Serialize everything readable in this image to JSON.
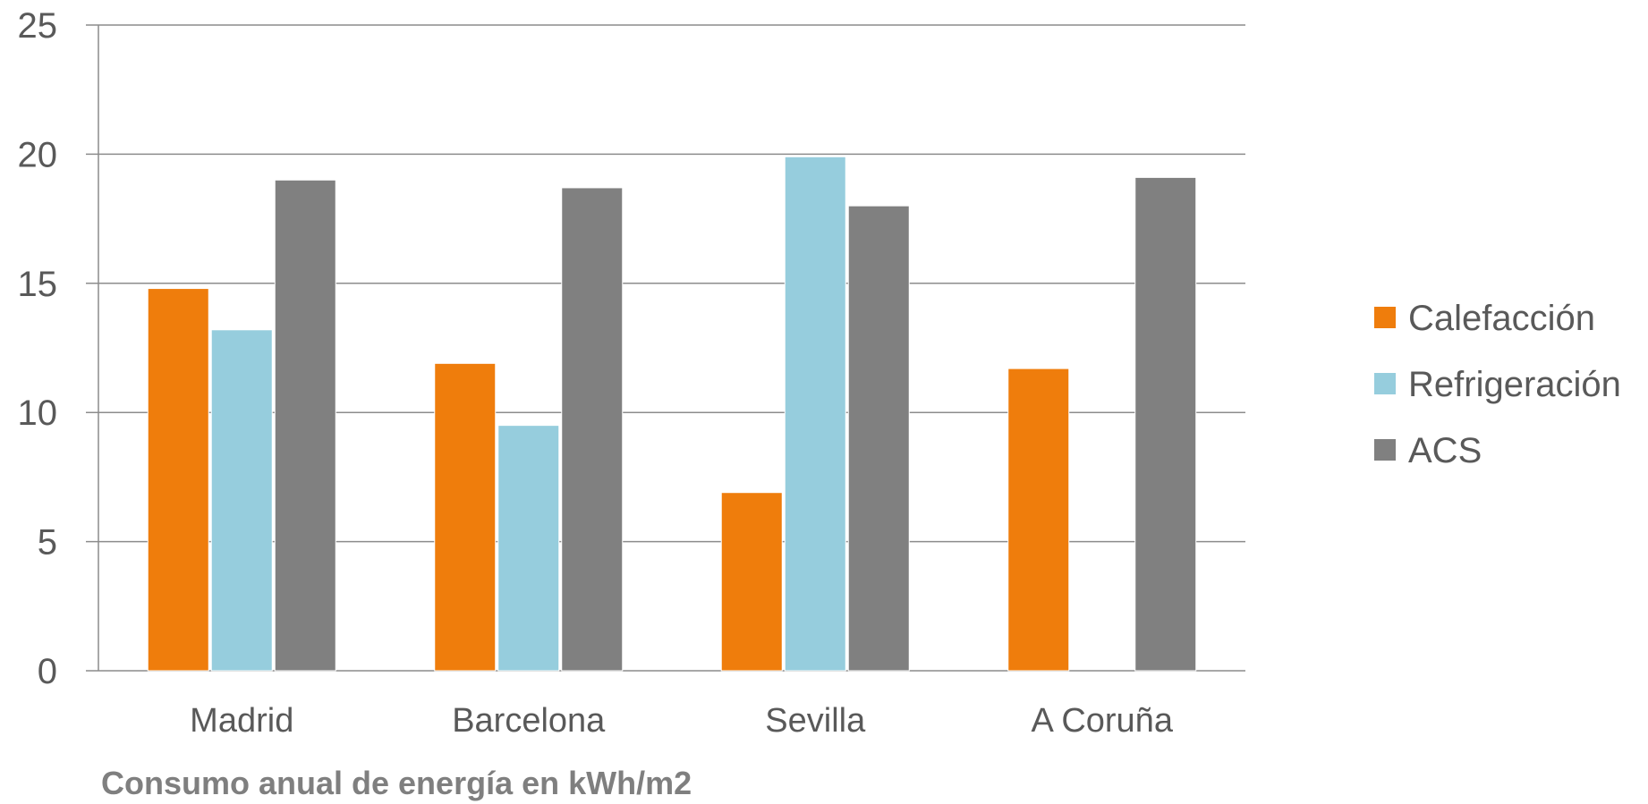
{
  "chart_data": {
    "type": "bar",
    "categories": [
      "Madrid",
      "Barcelona",
      "Sevilla",
      "A Coruña"
    ],
    "series": [
      {
        "name": "Calefacción",
        "values": [
          14.8,
          11.9,
          6.9,
          11.7
        ],
        "color": "#ef7d0c"
      },
      {
        "name": "Refrigeración",
        "values": [
          13.2,
          9.5,
          19.9,
          0
        ],
        "color": "#96cddd"
      },
      {
        "name": "ACS",
        "values": [
          19.0,
          18.7,
          18.0,
          19.1
        ],
        "color": "#808080"
      }
    ],
    "ylim": [
      0,
      25
    ],
    "yticks": [
      0,
      5,
      10,
      15,
      20,
      25
    ],
    "grid": true,
    "legend": "right",
    "xlabel": "",
    "ylabel": "",
    "title": ""
  },
  "caption": "Consumo anual de energía en kWh/m2"
}
